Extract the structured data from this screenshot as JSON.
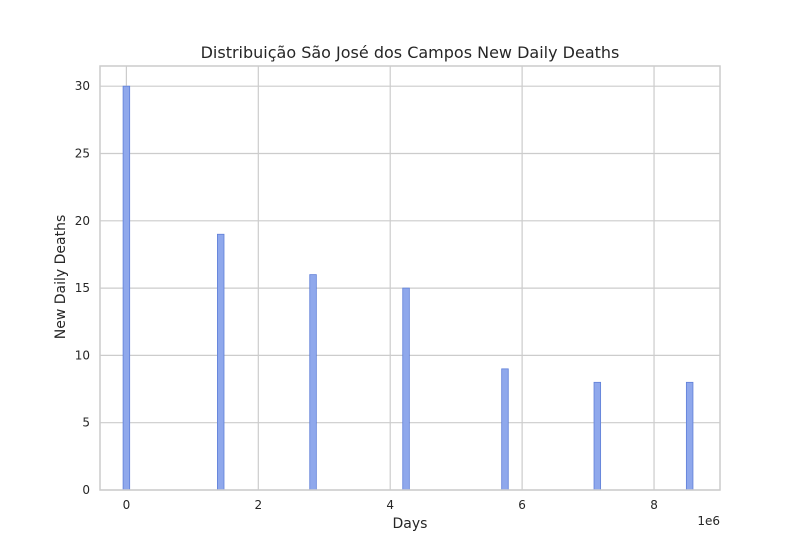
{
  "chart_data": {
    "type": "bar",
    "title": "Distribuição São José dos Campos New Daily Deaths",
    "xlabel": "Days",
    "ylabel": "New Daily Deaths",
    "x_offset_label": "1e6",
    "xlim": [
      -0.4,
      9.0
    ],
    "ylim": [
      0,
      31.5
    ],
    "xticks": [
      0,
      2,
      4,
      6,
      8
    ],
    "xtick_labels": [
      "0",
      "2",
      "4",
      "6",
      "8"
    ],
    "yticks": [
      0,
      5,
      10,
      15,
      20,
      25,
      30
    ],
    "ytick_labels": [
      "0",
      "5",
      "10",
      "15",
      "20",
      "25",
      "30"
    ],
    "grid": true,
    "bar_width": 0.1,
    "x": [
      0.0,
      1.43,
      2.83,
      4.24,
      5.74,
      7.14,
      8.54
    ],
    "values": [
      30,
      19,
      16,
      15,
      9,
      8,
      8
    ],
    "colors": {
      "bar_fill": "#8fa8ec",
      "bar_edge": "#5f7fd8",
      "grid": "#cccccc",
      "spine": "#cccccc",
      "text": "#262626"
    }
  }
}
